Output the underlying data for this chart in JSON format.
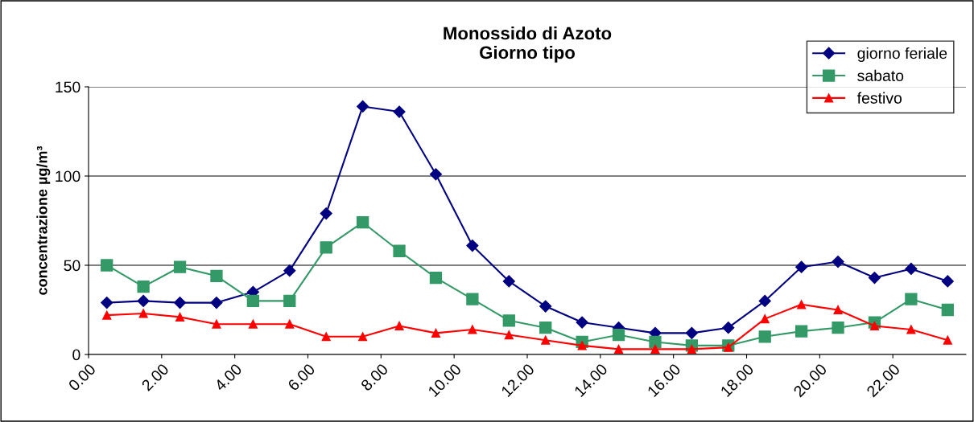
{
  "chart_data": {
    "type": "line",
    "title": "Monossido di Azoto\nGiorno tipo",
    "ylabel": "concentrazione µg/m³",
    "x": [
      0.5,
      1.5,
      2.5,
      3.5,
      4.5,
      5.5,
      6.5,
      7.5,
      8.5,
      9.5,
      10.5,
      11.5,
      12.5,
      13.5,
      14.5,
      15.5,
      16.5,
      17.5,
      18.5,
      19.5,
      20.5,
      21.5,
      22.5,
      23.5
    ],
    "series": [
      {
        "name": "giorno feriale",
        "color": "#000080",
        "marker": "diamond",
        "values": [
          29,
          30,
          29,
          29,
          35,
          47,
          79,
          139,
          136,
          101,
          61,
          41,
          27,
          18,
          15,
          12,
          12,
          15,
          30,
          49,
          52,
          43,
          48,
          41
        ]
      },
      {
        "name": "sabato",
        "color": "#339966",
        "marker": "square",
        "values": [
          50,
          38,
          49,
          44,
          30,
          30,
          60,
          74,
          58,
          43,
          31,
          19,
          15,
          7,
          11,
          7,
          5,
          5,
          10,
          13,
          15,
          18,
          31,
          25
        ]
      },
      {
        "name": "festivo",
        "color": "#ff0000",
        "marker": "triangle",
        "values": [
          22,
          23,
          21,
          17,
          17,
          17,
          10,
          10,
          16,
          12,
          14,
          11,
          8,
          5,
          3,
          3,
          3,
          4,
          20,
          28,
          25,
          16,
          14,
          8
        ]
      }
    ],
    "xlim": [
      0,
      24
    ],
    "xticks": [
      {
        "value": 0,
        "label": "0.00"
      },
      {
        "value": 2,
        "label": "2.00"
      },
      {
        "value": 4,
        "label": "4.00"
      },
      {
        "value": 6,
        "label": "6.00"
      },
      {
        "value": 8,
        "label": "8.00"
      },
      {
        "value": 10,
        "label": "10.00"
      },
      {
        "value": 12,
        "label": "12.00"
      },
      {
        "value": 14,
        "label": "14.00"
      },
      {
        "value": 16,
        "label": "16.00"
      },
      {
        "value": 18,
        "label": "18.00"
      },
      {
        "value": 20,
        "label": "20.00"
      },
      {
        "value": 22,
        "label": "22.00"
      }
    ],
    "ylim": [
      0,
      150
    ],
    "yticks": [
      0,
      50,
      100,
      150
    ],
    "grid": "y",
    "legend": "top right",
    "line_style": "solid"
  }
}
